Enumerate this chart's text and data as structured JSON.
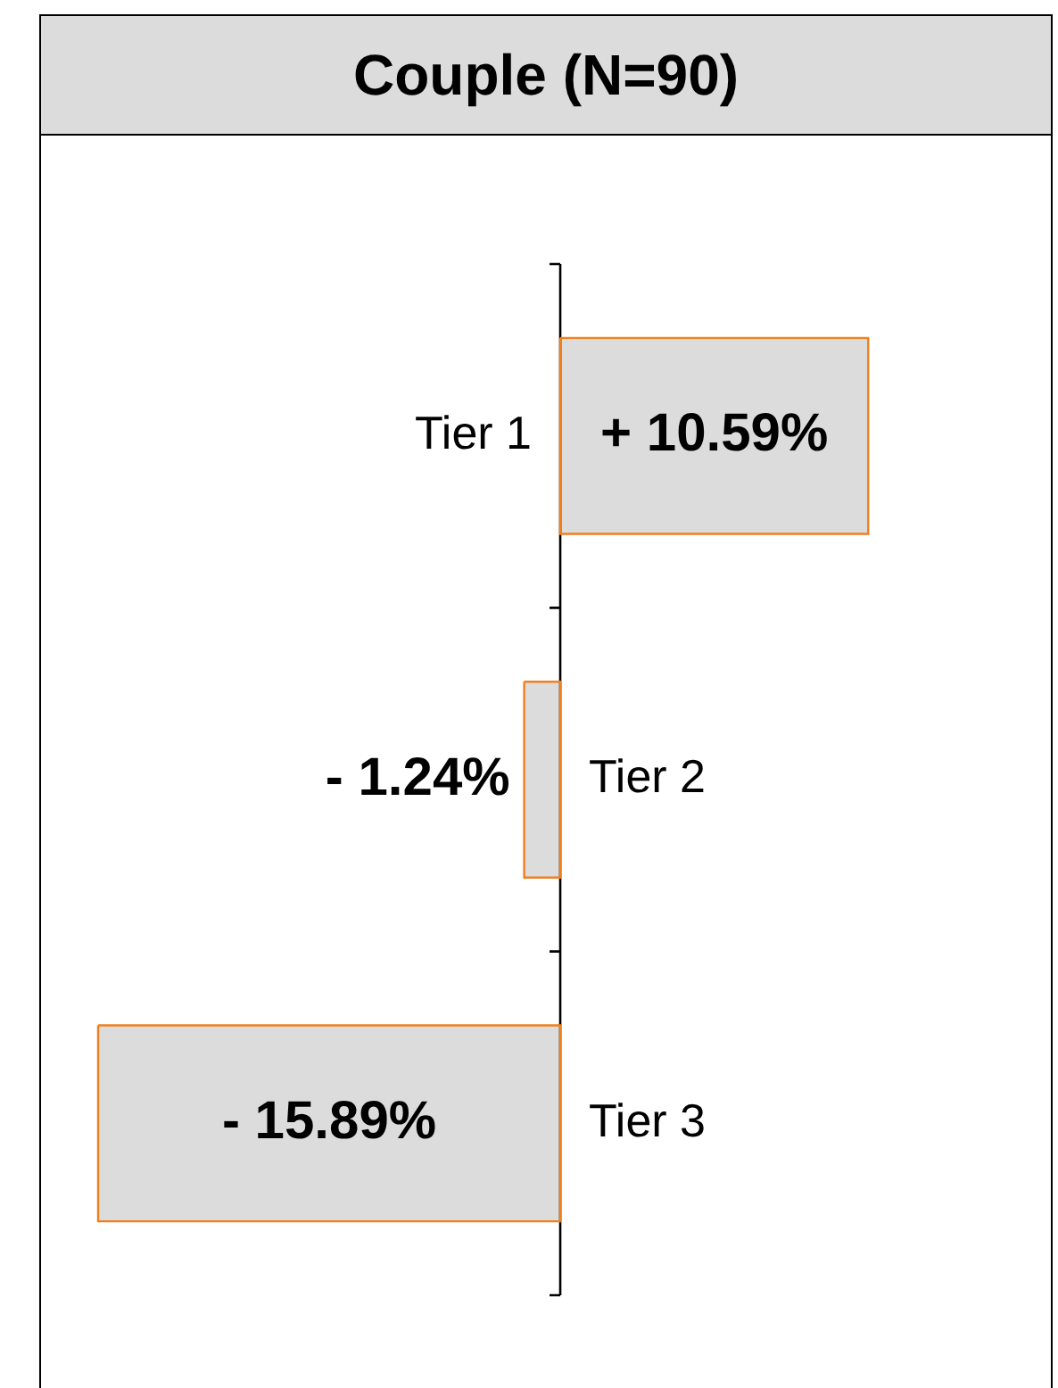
{
  "chart_data": {
    "type": "bar",
    "orientation": "horizontal",
    "title": "Couple (N=90)",
    "categories": [
      "Tier 1",
      "Tier 2",
      "Tier 3"
    ],
    "values": [
      10.59,
      -1.24,
      -15.89
    ],
    "color": "#dcdcdc",
    "value_labels": [
      "+ 10.59%",
      "- 1.24%",
      "- 15.89%"
    ],
    "legend": false
  }
}
